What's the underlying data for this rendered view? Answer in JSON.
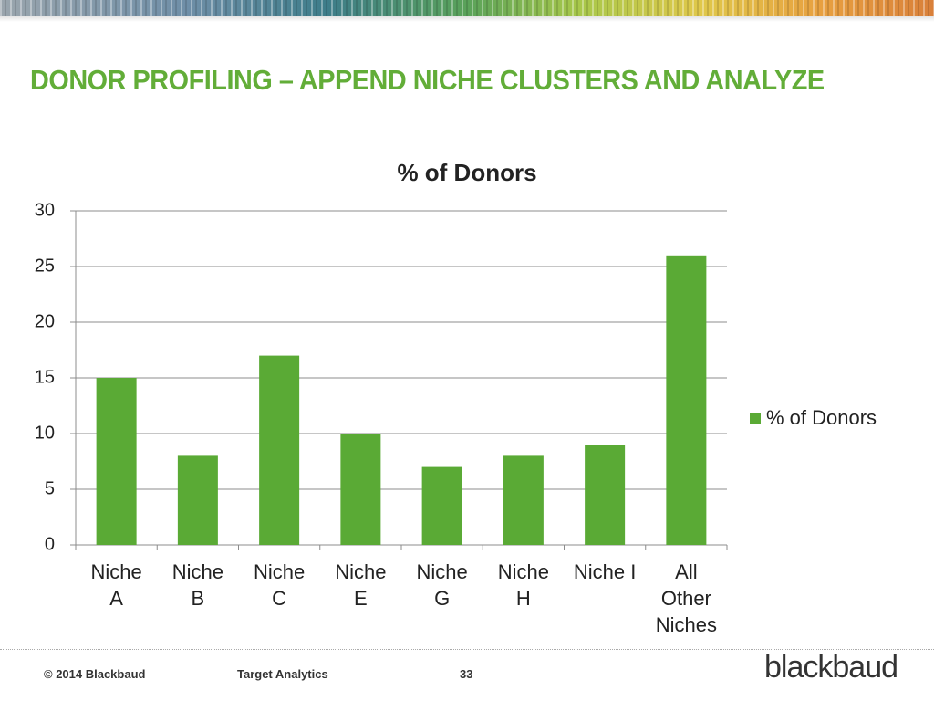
{
  "slide_title": "DONOR PROFILING – APPEND NICHE CLUSTERS AND ANALYZE",
  "chart_data": {
    "type": "bar",
    "title": "% of Donors",
    "categories": [
      "Niche A",
      "Niche B",
      "Niche C",
      "Niche E",
      "Niche G",
      "Niche H",
      "Niche I",
      "All Other Niches"
    ],
    "series": [
      {
        "name": "% of Donors",
        "color": "#5aaa35",
        "values": [
          15,
          8,
          17,
          10,
          7,
          8,
          9,
          26
        ]
      }
    ],
    "ylim": [
      0,
      30
    ],
    "yticks": [
      0,
      5,
      10,
      15,
      20,
      25,
      30
    ],
    "grid": true,
    "legend": "right"
  },
  "footer": {
    "copyright": "© 2014 Blackbaud",
    "department": "Target Analytics",
    "page": "33",
    "logo": "blackbaud"
  }
}
